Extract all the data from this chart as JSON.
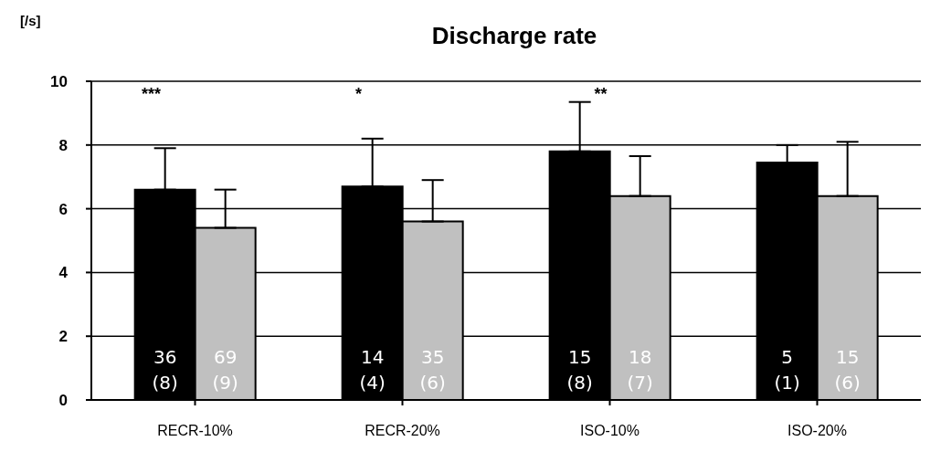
{
  "chart_data": {
    "type": "bar",
    "title": "Discharge rate",
    "ylabel": "[/s]",
    "categories": [
      "RECR-10%",
      "RECR-20%",
      "ISO-10%",
      "ISO-20%"
    ],
    "series": [
      {
        "color": "#000000",
        "values": [
          6.6,
          6.7,
          7.8,
          7.45
        ],
        "errors": [
          [
            6.6,
            7.9
          ],
          [
            6.7,
            8.2
          ],
          [
            7.8,
            9.35
          ],
          [
            7.45,
            8.0
          ]
        ]
      },
      {
        "color": "#c0c0c0",
        "values": [
          5.4,
          5.6,
          6.4,
          6.4
        ],
        "errors": [
          [
            5.4,
            6.6
          ],
          [
            5.6,
            6.9
          ],
          [
            6.4,
            7.65
          ],
          [
            6.4,
            8.1
          ]
        ]
      }
    ],
    "annotations": [
      "36 (8)",
      "69 (9)",
      "14 (4)",
      "35 (6)",
      "15 (8)",
      "18 (7)",
      "5 (1)",
      "15 (6)",
      "***",
      "*",
      "**"
    ],
    "ylim": [
      0,
      10
    ],
    "yticks": [
      0,
      2,
      4,
      6,
      8,
      10
    ],
    "grid": "y"
  }
}
